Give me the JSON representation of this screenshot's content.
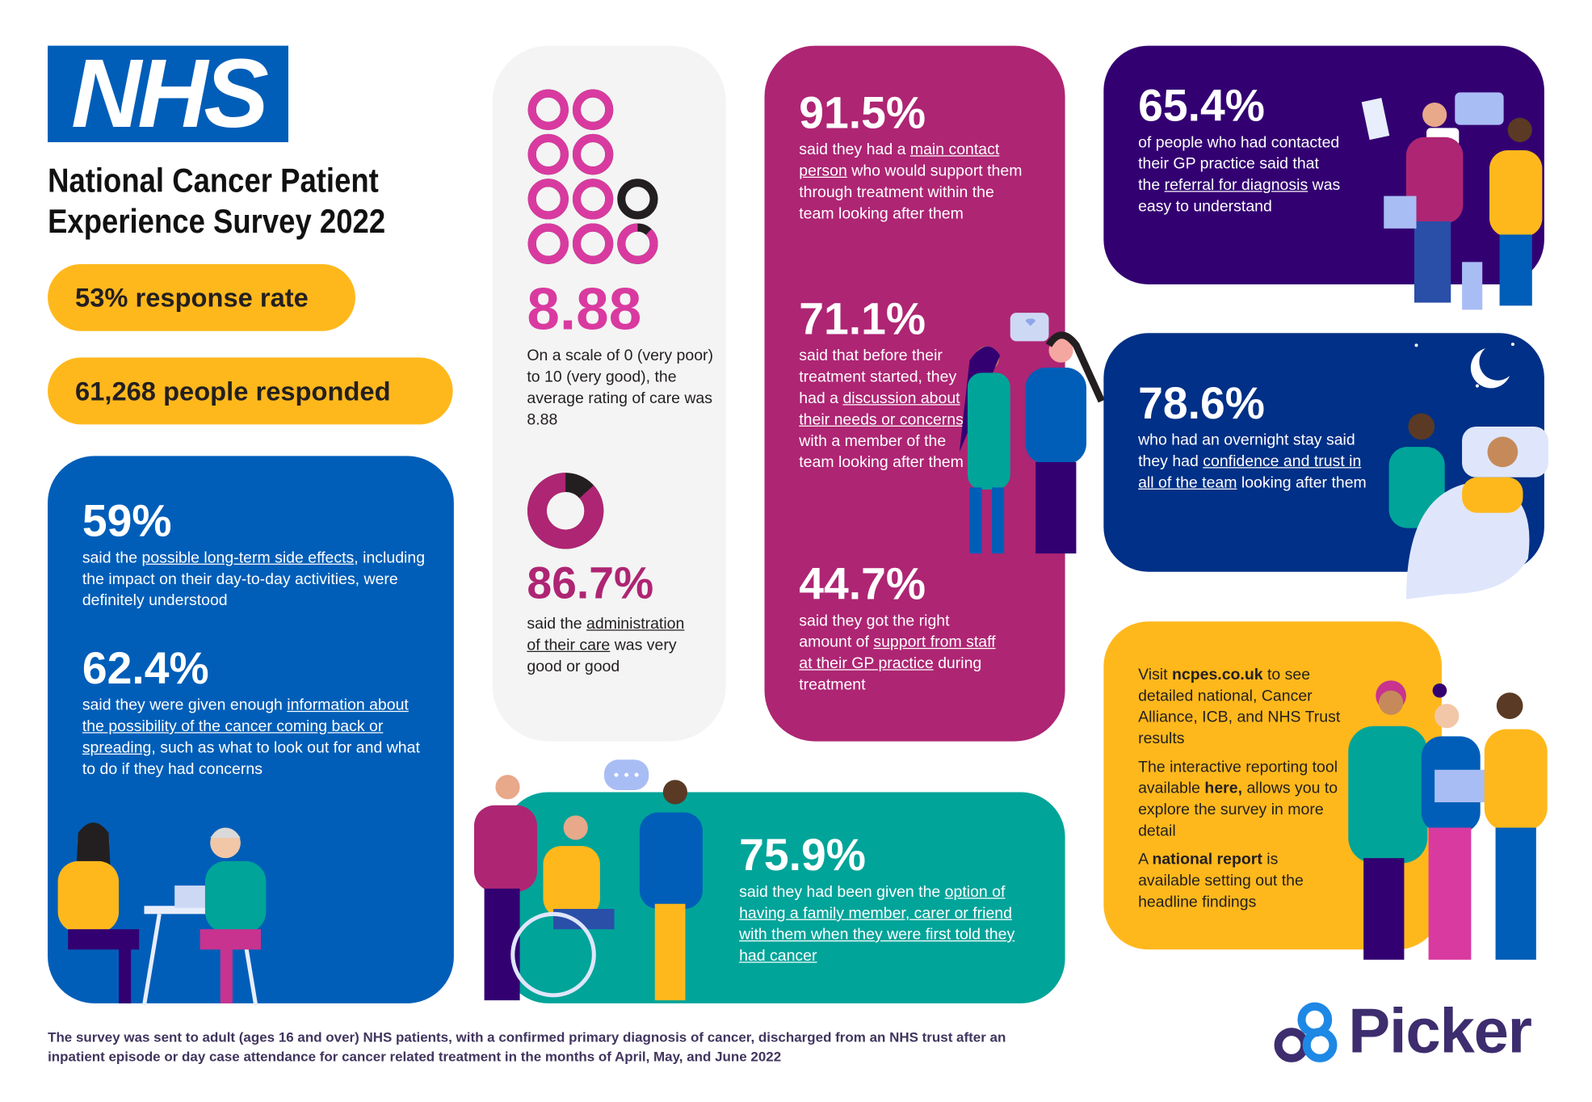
{
  "logo": {
    "nhs": "NHS"
  },
  "header": {
    "title_line1": "National Cancer Patient",
    "title_line2": "Experience Survey 2022"
  },
  "pills": {
    "response_rate": "53% response rate",
    "respondents_number": "61,268",
    "respondents_label": "people responded"
  },
  "blue_card": {
    "stat1": {
      "value": "59%",
      "pre": "said the ",
      "link": "possible long-term side effects",
      "post": ", including the impact on their day-to-day activities, were definitely understood"
    },
    "stat2": {
      "value": "62.4%",
      "pre": "said they were given enough ",
      "link": "information about the possibility of the cancer coming back or spreading",
      "post": ", such as what to look out for and what to do if they had concerns"
    }
  },
  "grey_card": {
    "rating": {
      "value": "8.88",
      "score": 8.88,
      "max": 10,
      "text": "On a scale of 0 (very poor) to 10 (very good), the average rating of care was 8.88"
    },
    "admin": {
      "value": "86.7%",
      "fraction": 0.867,
      "pre": "said the ",
      "link": "administration of their care",
      "post": " was very good or good"
    }
  },
  "magenta_card": {
    "stat1": {
      "value": "91.5%",
      "pre": "said they had a ",
      "link": "main contact person",
      "post": " who would support them through treatment within the team looking after them"
    },
    "stat2": {
      "value": "71.1%",
      "pre": "said that before their treatment started, they had a ",
      "link": "discussion about their needs or concerns",
      "post": " with a member of the team looking after them"
    },
    "stat3": {
      "value": "44.7%",
      "pre": "said they got the right amount of ",
      "link": "support from staff at their GP practice",
      "post": " during treatment"
    }
  },
  "purple_card": {
    "value": "65.4%",
    "pre": "of people who had contacted their GP practice said that the ",
    "link": "referral for diagnosis",
    "post": " was easy to understand"
  },
  "navy_card": {
    "value": "78.6%",
    "pre": "who had an overnight stay said they had ",
    "link": "confidence and trust in all of the team",
    "post": " looking after them"
  },
  "teal_card": {
    "value": "75.9%",
    "pre": "said they had been given the ",
    "link": "option of having a family member, carer or friend with them when they were first told they had cancer",
    "post": ""
  },
  "yellow_card": {
    "p1_pre": "Visit ",
    "p1_bold": "ncpes.co.uk",
    "p1_post": " to see detailed national, Cancer Alliance, ICB, and NHS Trust results",
    "p2_pre": "The interactive reporting tool available ",
    "p2_bold": "here,",
    "p2_post": " allows you to explore the survey in more detail",
    "p3_pre": "A ",
    "p3_bold": "national report",
    "p3_post": " is available setting out the headline findings"
  },
  "footer": {
    "text": "The survey was sent to adult (ages 16 and over) NHS patients, with a confirmed primary diagnosis of cancer, discharged from an NHS trust after an inpatient episode or day case attendance for cancer related treatment in the months of April, May, and June 2022"
  },
  "brand": {
    "picker": "Picker"
  },
  "colors": {
    "nhs_blue": "#005EB8",
    "yellow": "#FFB81C",
    "magenta": "#AE2573",
    "pink": "#D93AA0",
    "purple": "#330072",
    "navy": "#003087",
    "teal": "#00A499",
    "grey": "#F4F4F4"
  }
}
